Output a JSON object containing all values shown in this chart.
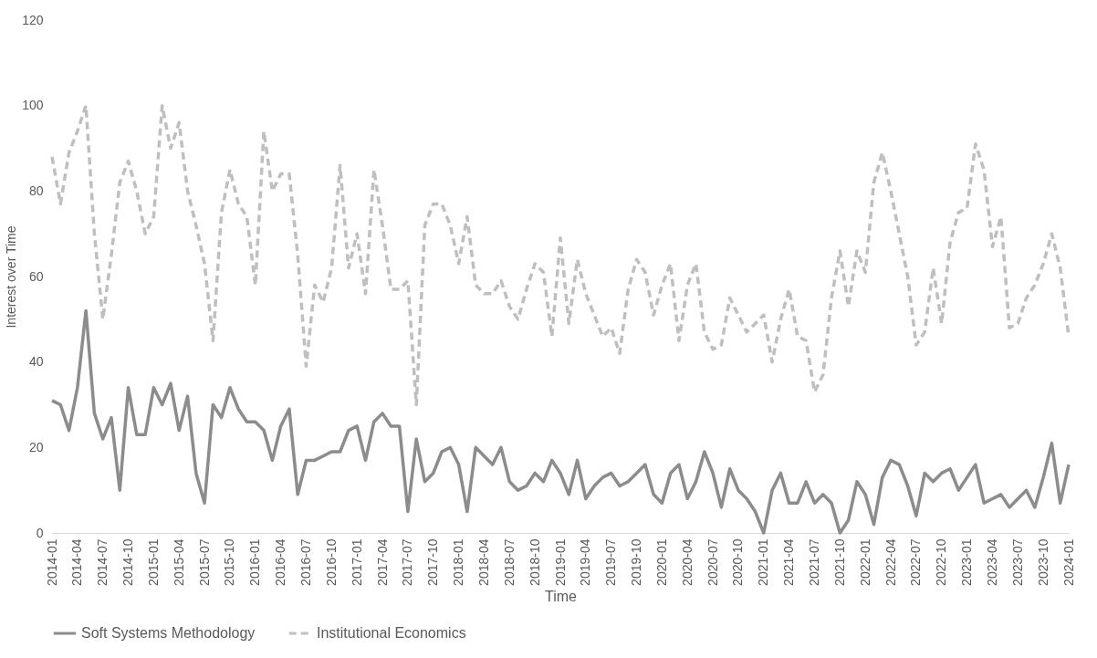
{
  "chart_data": {
    "type": "line",
    "xlabel": "Time",
    "ylabel": "Interest over Time",
    "categories": [
      "2014-01",
      null,
      null,
      "2014-04",
      null,
      null,
      "2014-07",
      null,
      null,
      "2014-10",
      null,
      null,
      "2015-01",
      null,
      null,
      "2015-04",
      null,
      null,
      "2015-07",
      null,
      null,
      "2015-10",
      null,
      null,
      "2016-01",
      null,
      null,
      "2016-04",
      null,
      null,
      "2016-07",
      null,
      null,
      "2016-10",
      null,
      null,
      "2017-01",
      null,
      null,
      "2017-04",
      null,
      null,
      "2017-07",
      null,
      null,
      "2017-10",
      null,
      null,
      "2018-01",
      null,
      null,
      "2018-04",
      null,
      null,
      "2018-07",
      null,
      null,
      "2018-10",
      null,
      null,
      "2019-01",
      null,
      null,
      "2019-04",
      null,
      null,
      "2019-07",
      null,
      null,
      "2019-10",
      null,
      null,
      "2020-01",
      null,
      null,
      "2020-04",
      null,
      null,
      "2020-07",
      null,
      null,
      "2020-10",
      null,
      null,
      "2021-01",
      null,
      null,
      "2021-04",
      null,
      null,
      "2021-07",
      null,
      null,
      "2021-10",
      null,
      null,
      "2022-01",
      null,
      null,
      "2022-04",
      null,
      null,
      "2022-07",
      null,
      null,
      "2022-10",
      null,
      null,
      "2023-01",
      null,
      null,
      "2023-04",
      null,
      null,
      "2023-07",
      null,
      null,
      "2023-10",
      null,
      null,
      "2024-01"
    ],
    "series": [
      {
        "name": "Soft Systems Methodology",
        "color": "#8c8c8c",
        "line_style": "solid",
        "values": [
          31,
          30,
          24,
          34,
          52,
          28,
          22,
          27,
          10,
          34,
          23,
          23,
          34,
          30,
          35,
          24,
          32,
          14,
          7,
          30,
          27,
          34,
          29,
          26,
          26,
          24,
          17,
          25,
          29,
          9,
          17,
          17,
          18,
          19,
          19,
          24,
          25,
          17,
          26,
          28,
          25,
          25,
          5,
          22,
          12,
          14,
          19,
          20,
          16,
          5,
          20,
          18,
          16,
          20,
          12,
          10,
          11,
          14,
          12,
          17,
          14,
          9,
          17,
          8,
          11,
          13,
          14,
          11,
          12,
          14,
          16,
          9,
          7,
          14,
          16,
          8,
          12,
          19,
          14,
          6,
          15,
          10,
          8,
          5,
          0,
          10,
          14,
          7,
          7,
          12,
          7,
          9,
          7,
          0,
          3,
          12,
          9,
          2,
          13,
          17,
          16,
          11,
          4,
          14,
          12,
          14,
          15,
          10,
          13,
          16,
          7,
          8,
          9,
          6,
          8,
          10,
          6,
          13,
          21,
          7,
          16
        ]
      },
      {
        "name": "Institutional Economics",
        "color": "#bfbfbf",
        "line_style": "dashed",
        "values": [
          88,
          77,
          89,
          94,
          100,
          70,
          50,
          65,
          82,
          87,
          80,
          70,
          74,
          100,
          90,
          96,
          80,
          72,
          63,
          45,
          75,
          85,
          77,
          74,
          58,
          94,
          80,
          84,
          84,
          65,
          39,
          58,
          54,
          62,
          86,
          62,
          70,
          56,
          85,
          72,
          57,
          57,
          59,
          30,
          72,
          77,
          77,
          72,
          63,
          74,
          58,
          56,
          56,
          59,
          53,
          50,
          57,
          63,
          61,
          46,
          69,
          49,
          64,
          56,
          51,
          46,
          48,
          42,
          57,
          64,
          61,
          51,
          58,
          63,
          45,
          58,
          63,
          47,
          43,
          44,
          55,
          51,
          47,
          49,
          51,
          40,
          50,
          57,
          46,
          45,
          33,
          37,
          55,
          66,
          53,
          66,
          61,
          82,
          89,
          80,
          70,
          60,
          44,
          47,
          62,
          49,
          68,
          75,
          76,
          91,
          85,
          67,
          74,
          48,
          49,
          55,
          58,
          63,
          70,
          62,
          46
        ]
      }
    ],
    "ylim": [
      0,
      120
    ],
    "yticks": [
      0,
      20,
      40,
      60,
      80,
      100,
      120
    ],
    "grid": false,
    "legend": "bottom",
    "marker": "none"
  }
}
